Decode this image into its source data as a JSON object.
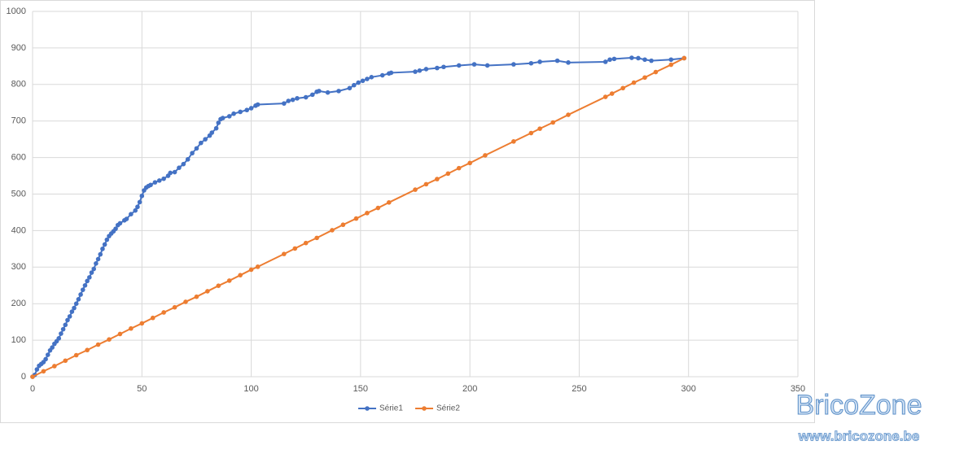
{
  "chart_data": {
    "type": "line",
    "xlim": [
      0,
      350
    ],
    "xticks": [
      0,
      50,
      100,
      150,
      200,
      250,
      300,
      350
    ],
    "ylim": [
      0,
      1000
    ],
    "yticks": [
      0,
      100,
      200,
      300,
      400,
      500,
      600,
      700,
      800,
      900,
      1000
    ],
    "grid": true,
    "legend": "bottom",
    "series": [
      {
        "name": "Série1",
        "color": "#4472c4",
        "x": [
          0,
          1,
          2,
          3,
          4,
          5,
          6,
          7,
          8,
          9,
          10,
          11,
          12,
          13,
          14,
          15,
          16,
          17,
          18,
          19,
          20,
          21,
          22,
          23,
          24,
          25,
          26,
          27,
          28,
          29,
          30,
          31,
          32,
          33,
          34,
          35,
          36,
          37,
          38,
          39,
          40,
          42,
          43,
          45,
          47,
          48,
          49,
          50,
          51,
          52,
          53,
          54,
          56,
          58,
          60,
          62,
          63,
          65,
          67,
          69,
          71,
          73,
          75,
          77,
          79,
          81,
          82,
          84,
          85,
          86,
          87,
          90,
          92,
          95,
          98,
          100,
          102,
          103,
          115,
          117,
          119,
          121,
          125,
          128,
          130,
          131,
          135,
          140,
          145,
          147,
          149,
          151,
          153,
          155,
          160,
          163,
          164,
          175,
          177,
          180,
          185,
          188,
          195,
          202,
          208,
          220,
          228,
          232,
          240,
          245,
          262,
          264,
          266,
          274,
          277,
          280,
          283,
          292,
          298
        ],
        "values": [
          0,
          5,
          20,
          30,
          35,
          40,
          48,
          60,
          72,
          80,
          90,
          97,
          105,
          118,
          130,
          142,
          155,
          165,
          178,
          188,
          200,
          212,
          225,
          238,
          250,
          262,
          272,
          285,
          295,
          310,
          322,
          335,
          350,
          362,
          375,
          385,
          392,
          398,
          405,
          415,
          420,
          428,
          432,
          445,
          455,
          465,
          478,
          495,
          510,
          518,
          522,
          525,
          532,
          537,
          542,
          550,
          558,
          560,
          572,
          582,
          595,
          612,
          625,
          640,
          650,
          660,
          668,
          680,
          695,
          705,
          708,
          713,
          720,
          725,
          730,
          735,
          742,
          745,
          748,
          755,
          758,
          762,
          765,
          772,
          780,
          782,
          778,
          782,
          790,
          798,
          805,
          810,
          815,
          820,
          825,
          830,
          832,
          835,
          838,
          842,
          845,
          848,
          852,
          855,
          852,
          855,
          858,
          862,
          865,
          860,
          862,
          868,
          870,
          873,
          872,
          868,
          865,
          868,
          872
        ]
      },
      {
        "name": "Série2",
        "color": "#ed7d31",
        "x": [
          0,
          5,
          10,
          15,
          20,
          25,
          30,
          35,
          40,
          45,
          50,
          55,
          60,
          65,
          70,
          75,
          80,
          85,
          90,
          95,
          100,
          103,
          115,
          120,
          125,
          130,
          137,
          142,
          148,
          153,
          158,
          163,
          175,
          180,
          185,
          190,
          195,
          200,
          207,
          220,
          228,
          232,
          238,
          245,
          262,
          265,
          270,
          275,
          280,
          285,
          292,
          298
        ],
        "values": [
          0,
          15,
          29,
          44,
          59,
          73,
          88,
          102,
          117,
          132,
          146,
          161,
          176,
          190,
          205,
          219,
          234,
          249,
          263,
          278,
          293,
          301,
          336,
          351,
          366,
          380,
          401,
          416,
          433,
          448,
          462,
          477,
          512,
          527,
          541,
          556,
          571,
          585,
          606,
          644,
          667,
          679,
          696,
          717,
          766,
          775,
          790,
          805,
          819,
          834,
          854,
          872
        ]
      }
    ]
  },
  "watermark": {
    "brand": "BricoZone",
    "url": "www.bricozone.be"
  }
}
